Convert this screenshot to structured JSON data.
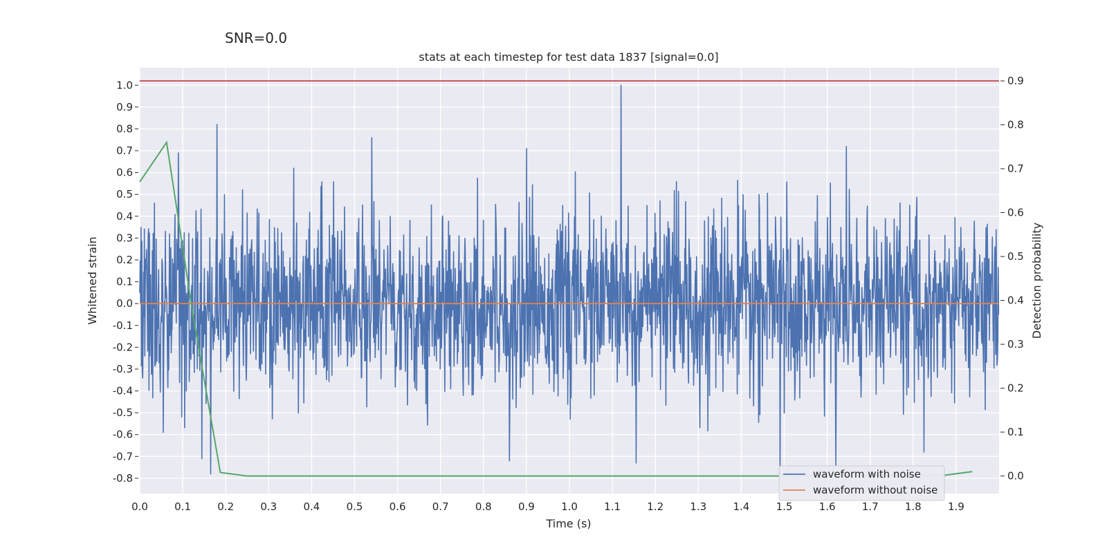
{
  "suptitle": "SNR=0.0",
  "chart_data": {
    "type": "line",
    "title": "stats at each timestep for test data 1837 [signal=0.0]",
    "xlabel": "Time (s)",
    "ylabel": "Whitened strain",
    "y2label": "Detection probability",
    "xlim": [
      0.0,
      2.0
    ],
    "ylim": [
      -0.87,
      1.08
    ],
    "y2lim": [
      -0.04,
      0.93
    ],
    "xticks": [
      "0.0",
      "0.1",
      "0.2",
      "0.3",
      "0.4",
      "0.5",
      "0.6",
      "0.7",
      "0.8",
      "0.9",
      "1.0",
      "1.1",
      "1.2",
      "1.3",
      "1.4",
      "1.5",
      "1.6",
      "1.7",
      "1.8",
      "1.9"
    ],
    "yticks": [
      "-0.8",
      "-0.7",
      "-0.6",
      "-0.5",
      "-0.4",
      "-0.3",
      "-0.2",
      "-0.1",
      "0.0",
      "0.1",
      "0.2",
      "0.3",
      "0.4",
      "0.5",
      "0.6",
      "0.7",
      "0.8",
      "0.9",
      "1.0"
    ],
    "y2ticks": [
      "0.0",
      "0.1",
      "0.2",
      "0.3",
      "0.4",
      "0.5",
      "0.6",
      "0.7",
      "0.8",
      "0.9"
    ],
    "grid": true,
    "legend": "lower-right",
    "background": "#eaeaf2",
    "series": [
      {
        "name": "waveform with noise",
        "color": "#4c72b0",
        "axis": "left",
        "description": "dense noise time series, approx. 2048 samples, amplitude mostly within ±0.6",
        "spikes": [
          [
            0.055,
            -0.59
          ],
          [
            0.09,
            0.69
          ],
          [
            0.145,
            -0.71
          ],
          [
            0.165,
            -0.78
          ],
          [
            0.18,
            0.82
          ],
          [
            0.54,
            0.76
          ],
          [
            0.86,
            -0.72
          ],
          [
            0.9,
            0.71
          ],
          [
            1.12,
            1.0
          ],
          [
            1.155,
            -0.73
          ],
          [
            1.49,
            -0.81
          ],
          [
            1.62,
            -0.74
          ],
          [
            1.645,
            0.72
          ],
          [
            1.825,
            -0.68
          ]
        ]
      },
      {
        "name": "waveform without noise",
        "color": "#dd8452",
        "axis": "left",
        "x": [
          0.0,
          2.0
        ],
        "y": [
          0.0,
          0.0
        ]
      },
      {
        "color": "#55a868",
        "axis": "right",
        "x": [
          0.0,
          0.0625,
          0.125,
          0.1875,
          0.25,
          0.5,
          1.0,
          1.5,
          1.875,
          1.9375
        ],
        "y": [
          0.67,
          0.76,
          0.36,
          0.008,
          0.0,
          0.0,
          0.0,
          0.0,
          0.002,
          0.01
        ]
      },
      {
        "color": "#c44e52",
        "axis": "right",
        "x": [
          0.0,
          2.0
        ],
        "y": [
          0.9,
          0.9
        ]
      }
    ]
  }
}
